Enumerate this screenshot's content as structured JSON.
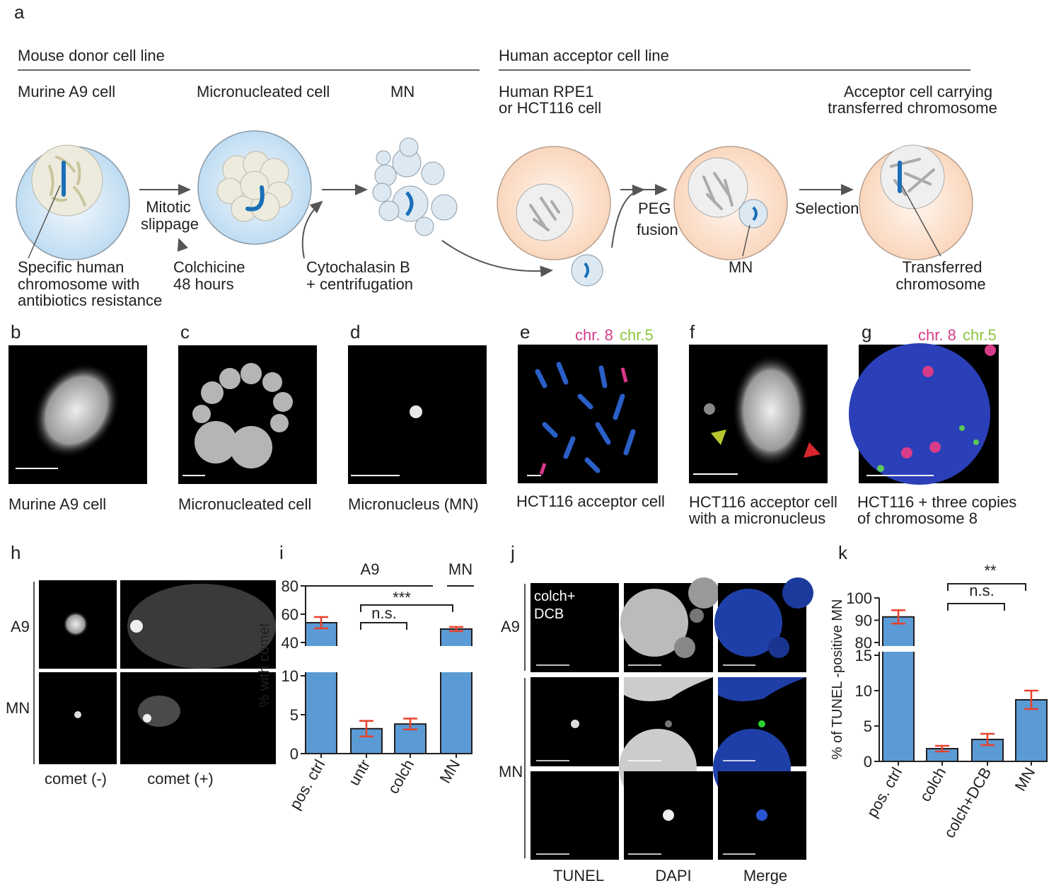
{
  "panel_labels": [
    "a",
    "b",
    "c",
    "d",
    "e",
    "f",
    "g",
    "h",
    "i",
    "j",
    "k"
  ],
  "diagram": {
    "headers": [
      "Mouse donor cell line",
      "Human acceptor cell line"
    ],
    "stage_titles": [
      [
        "Murine A9 cell"
      ],
      [
        "Micronucleated cell"
      ],
      [
        "MN"
      ],
      [
        "Human RPE1",
        "or HCT116 cell"
      ],
      [
        "Acceptor cell carrying",
        "transferred chromosome"
      ]
    ],
    "steps": [
      [
        "Mitotic",
        "slippage"
      ],
      [
        "PEG",
        "fusion"
      ],
      [
        "Selection"
      ]
    ],
    "notes": [
      [
        "Specific human",
        "chromosome with",
        "antibiotics resistance"
      ],
      [
        "Colchicine",
        "48 hours"
      ],
      [
        "Cytochalasin B",
        "+ centrifugation"
      ],
      [
        "MN"
      ],
      [
        "Transferred",
        "chromosome"
      ]
    ]
  },
  "images": {
    "captions": [
      [
        "Murine A9 cell"
      ],
      [
        "Micronucleated cell"
      ],
      [
        "Micronucleus (MN)"
      ],
      [
        "HCT116 acceptor cell"
      ],
      [
        "HCT116 acceptor cell",
        "with a micronucleus"
      ],
      [
        "HCT116 + three copies",
        "of chromosome 8"
      ]
    ],
    "channel_labels": [
      "chr. 8",
      "chr.5"
    ]
  },
  "comet": {
    "rows": [
      "A9",
      "MN"
    ],
    "columns": [
      "comet (-)",
      "comet (+)"
    ]
  },
  "tunel": {
    "rows": [
      "A9",
      "MN"
    ],
    "columns": [
      "TUNEL",
      "DAPI",
      "Merge"
    ],
    "overlay": [
      "colch+",
      "DCB"
    ]
  },
  "chart_data": [
    {
      "type": "bar",
      "y_label": "% with comet",
      "categories": [
        "pos. ctrl",
        "untr",
        "colch",
        "MN"
      ],
      "values": [
        54,
        3.2,
        3.8,
        49.5
      ],
      "errors": [
        4,
        1,
        0.7,
        1.5
      ],
      "color": "#5b9bd5",
      "error_color": "#e8412c",
      "ylim": [
        0,
        80
      ],
      "ybreak": [
        10,
        40
      ],
      "yticks": [
        0,
        5,
        10,
        40,
        60,
        80
      ],
      "annotations": [
        "A9",
        "MN",
        "***",
        "n.s."
      ]
    },
    {
      "type": "bar",
      "y_label": "% of TUNEL -positive MN",
      "categories": [
        "pos. ctrl",
        "colch",
        "colch+DCB",
        "MN"
      ],
      "values": [
        91.5,
        1.8,
        3.1,
        8.7
      ],
      "errors": [
        3,
        0.4,
        0.8,
        1.3
      ],
      "color": "#5b9bd5",
      "error_color": "#e8412c",
      "ylim": [
        0,
        100
      ],
      "ybreak": [
        15,
        80
      ],
      "yticks": [
        0,
        5,
        10,
        15,
        80,
        90,
        100
      ],
      "annotations": [
        "**",
        "n.s."
      ]
    }
  ]
}
